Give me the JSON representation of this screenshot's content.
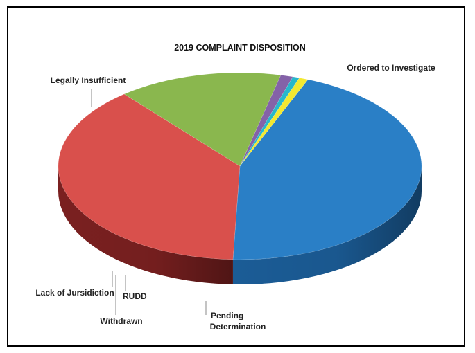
{
  "chart_data": {
    "type": "pie",
    "title": "2019 COMPLAINT DISPOSITION",
    "slices": [
      {
        "label": "Legally Insufficient",
        "value": 44.5,
        "color": "#2A7FC6",
        "dark": "#1B5C96"
      },
      {
        "label": "Ordered to Investigate",
        "value": 38.4,
        "color": "#D9504C",
        "dark": "#7A2020"
      },
      {
        "label": "Pending Determination",
        "value": 14.6,
        "color": "#8AB74E",
        "dark": "#4D6E2A"
      },
      {
        "label": "RUDD",
        "value": 1.1,
        "color": "#8462A8",
        "dark": "#5A3F7A"
      },
      {
        "label": "Withdrawn",
        "value": 0.6,
        "color": "#27B7CC",
        "dark": "#178595"
      },
      {
        "label": "Lack of Jursidiction",
        "value": 0.8,
        "color": "#F2E831",
        "dark": "#C4B912"
      }
    ],
    "legend": "none",
    "data_labels": "outside"
  }
}
